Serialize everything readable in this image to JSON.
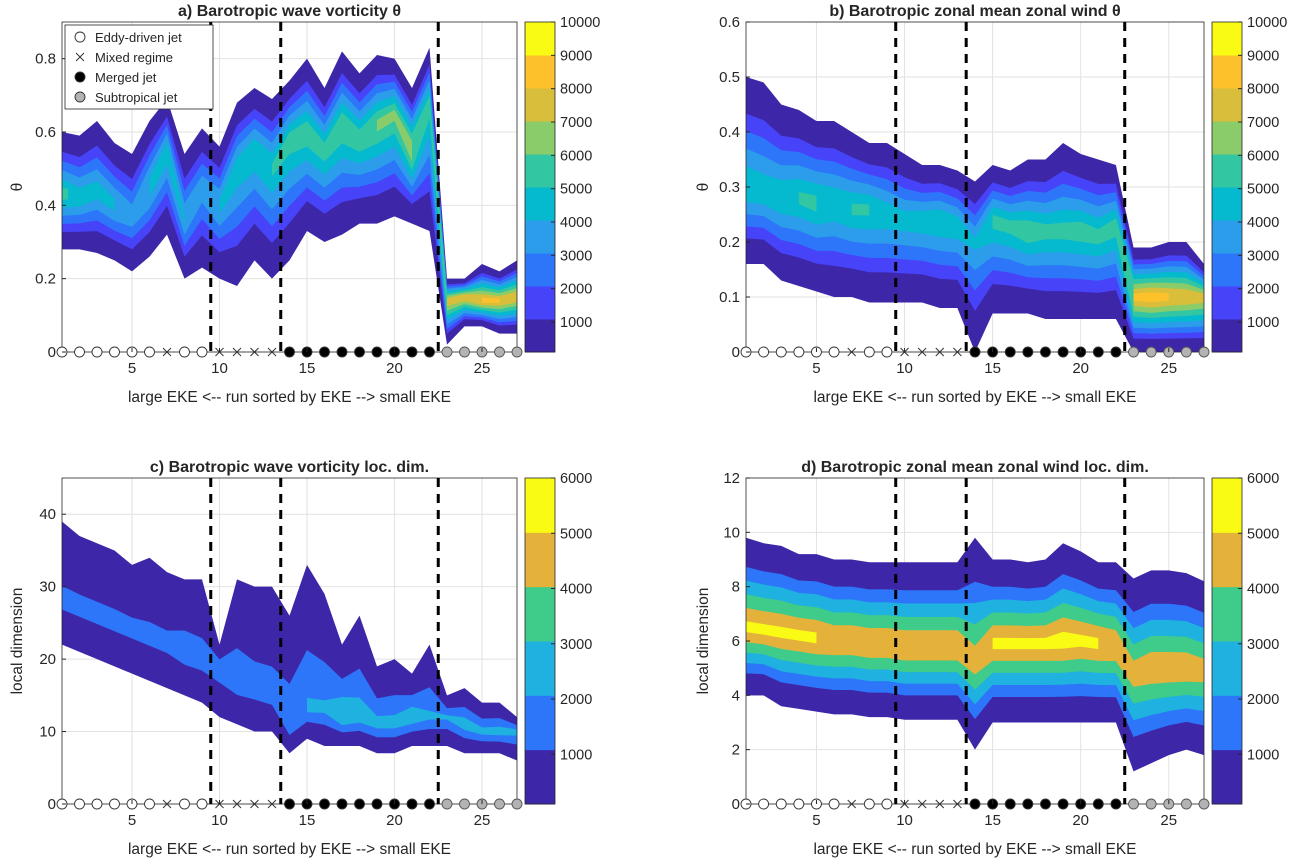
{
  "chart_data": [
    {
      "id": "a",
      "type": "contour",
      "title": "a) Barotropic wave vorticity θ",
      "xlabel": "large EKE <-- run sorted by EKE --> small EKE",
      "ylabel": "θ",
      "xlim": [
        1,
        27
      ],
      "ylim": [
        0,
        0.9
      ],
      "xticks": [
        5,
        10,
        15,
        20,
        25
      ],
      "yticks": [
        0,
        0.2,
        0.4,
        0.6,
        0.8
      ],
      "ytick_labels": [
        "0",
        "0.2",
        "0.4",
        "0.6",
        "0.8"
      ],
      "grid": true,
      "colorbar": {
        "levels": [
          1000,
          2000,
          3000,
          4000,
          5000,
          6000,
          7000,
          8000,
          9000,
          10000
        ],
        "ticks": [
          "1000",
          "2000",
          "3000",
          "4000",
          "5000",
          "6000",
          "7000",
          "8000",
          "9000",
          "10000"
        ]
      },
      "regime_boundaries": [
        9.5,
        13.5,
        22.5
      ],
      "legend": {
        "position": "top-left",
        "entries": [
          {
            "label": "Eddy-driven jet",
            "marker": "open-circle"
          },
          {
            "label": "Mixed regime",
            "marker": "x"
          },
          {
            "label": "Merged jet",
            "marker": "filled-circle"
          },
          {
            "label": "Subtropical jet",
            "marker": "gray-circle"
          }
        ]
      },
      "regime_markers": {
        "open-circle": [
          1,
          2,
          3,
          4,
          5,
          6,
          8,
          9
        ],
        "x": [
          7,
          10,
          11,
          12,
          13
        ],
        "filled-circle": [
          14,
          15,
          16,
          17,
          18,
          19,
          20,
          21,
          22
        ],
        "gray-circle": [
          23,
          24,
          25,
          26,
          27
        ]
      },
      "runs": [
        1,
        2,
        3,
        4,
        5,
        6,
        7,
        8,
        9,
        10,
        11,
        12,
        13,
        14,
        15,
        16,
        17,
        18,
        19,
        20,
        21,
        22,
        23,
        24,
        25,
        26,
        27
      ],
      "center": [
        0.43,
        0.42,
        0.44,
        0.4,
        0.37,
        0.45,
        0.55,
        0.36,
        0.45,
        0.4,
        0.5,
        0.55,
        0.5,
        0.58,
        0.6,
        0.55,
        0.62,
        0.58,
        0.62,
        0.65,
        0.55,
        0.68,
        0.14,
        0.15,
        0.14,
        0.14,
        0.15
      ],
      "lower": [
        0.28,
        0.28,
        0.27,
        0.25,
        0.22,
        0.26,
        0.32,
        0.2,
        0.23,
        0.2,
        0.18,
        0.25,
        0.2,
        0.25,
        0.33,
        0.3,
        0.32,
        0.35,
        0.35,
        0.37,
        0.35,
        0.33,
        0.02,
        0.07,
        0.07,
        0.05,
        0.05
      ],
      "upper": [
        0.6,
        0.59,
        0.63,
        0.57,
        0.54,
        0.63,
        0.69,
        0.54,
        0.61,
        0.56,
        0.68,
        0.72,
        0.69,
        0.74,
        0.8,
        0.72,
        0.82,
        0.76,
        0.81,
        0.8,
        0.72,
        0.83,
        0.2,
        0.2,
        0.24,
        0.22,
        0.25
      ],
      "peak": [
        5800,
        5200,
        5000,
        4800,
        4200,
        5000,
        5200,
        4600,
        4200,
        4800,
        5200,
        5400,
        5600,
        6000,
        6200,
        6000,
        6400,
        6200,
        6600,
        6600,
        7400,
        6000,
        8200,
        8400,
        8800,
        8600,
        8400
      ]
    },
    {
      "id": "b",
      "type": "contour",
      "title": "b) Barotropic zonal mean zonal wind θ",
      "xlabel": "large EKE <-- run sorted by EKE --> small EKE",
      "ylabel": "θ",
      "xlim": [
        1,
        27
      ],
      "ylim": [
        0,
        0.6
      ],
      "xticks": [
        5,
        10,
        15,
        20,
        25
      ],
      "yticks": [
        0,
        0.1,
        0.2,
        0.3,
        0.4,
        0.5,
        0.6
      ],
      "ytick_labels": [
        "0",
        "0.1",
        "0.2",
        "0.3",
        "0.4",
        "0.5",
        "0.6"
      ],
      "grid": true,
      "colorbar": {
        "levels": [
          1000,
          2000,
          3000,
          4000,
          5000,
          6000,
          7000,
          8000,
          9000,
          10000
        ],
        "ticks": [
          "1000",
          "2000",
          "3000",
          "4000",
          "5000",
          "6000",
          "7000",
          "8000",
          "9000",
          "10000"
        ]
      },
      "regime_boundaries": [
        9.5,
        13.5,
        22.5
      ],
      "regime_markers": {
        "open-circle": [
          1,
          2,
          3,
          4,
          5,
          6,
          8,
          9
        ],
        "x": [
          7,
          10,
          11,
          12,
          13
        ],
        "filled-circle": [
          14,
          15,
          16,
          17,
          18,
          19,
          20,
          21,
          22
        ],
        "gray-circle": [
          23,
          24,
          25,
          26,
          27
        ]
      },
      "runs": [
        1,
        2,
        3,
        4,
        5,
        6,
        7,
        8,
        9,
        10,
        11,
        12,
        13,
        14,
        15,
        16,
        17,
        18,
        19,
        20,
        21,
        22,
        23,
        24,
        25,
        26,
        27
      ],
      "center": [
        0.3,
        0.29,
        0.28,
        0.28,
        0.27,
        0.27,
        0.26,
        0.26,
        0.25,
        0.24,
        0.24,
        0.24,
        0.23,
        0.2,
        0.24,
        0.23,
        0.22,
        0.22,
        0.22,
        0.22,
        0.21,
        0.23,
        0.1,
        0.1,
        0.1,
        0.1,
        0.1
      ],
      "lower": [
        0.16,
        0.16,
        0.13,
        0.12,
        0.11,
        0.1,
        0.1,
        0.09,
        0.09,
        0.09,
        0.09,
        0.08,
        0.08,
        0.0,
        0.07,
        0.07,
        0.07,
        0.06,
        0.06,
        0.06,
        0.06,
        0.06,
        0.0,
        0.0,
        0.0,
        0.0,
        0.0
      ],
      "upper": [
        0.5,
        0.49,
        0.45,
        0.44,
        0.42,
        0.42,
        0.4,
        0.38,
        0.38,
        0.36,
        0.34,
        0.34,
        0.33,
        0.31,
        0.34,
        0.33,
        0.35,
        0.35,
        0.38,
        0.36,
        0.35,
        0.34,
        0.19,
        0.19,
        0.2,
        0.2,
        0.16
      ],
      "peak": [
        5400,
        5200,
        5400,
        5600,
        5800,
        5400,
        5600,
        5600,
        5200,
        5000,
        5200,
        5400,
        5200,
        4600,
        5800,
        5800,
        6200,
        5800,
        5800,
        6000,
        5800,
        6000,
        8600,
        9000,
        8600,
        8400,
        8000
      ]
    },
    {
      "id": "c",
      "type": "contour",
      "title": "c) Barotropic wave vorticity loc. dim.",
      "xlabel": "large EKE <-- run sorted by EKE --> small EKE",
      "ylabel": "local dimension",
      "xlim": [
        1,
        27
      ],
      "ylim": [
        0,
        45
      ],
      "xticks": [
        5,
        10,
        15,
        20,
        25
      ],
      "yticks": [
        0,
        10,
        20,
        30,
        40
      ],
      "ytick_labels": [
        "0",
        "10",
        "20",
        "30",
        "40"
      ],
      "grid": true,
      "colorbar": {
        "levels": [
          1000,
          2000,
          3000,
          4000,
          5000,
          6000
        ],
        "ticks": [
          "1000",
          "2000",
          "3000",
          "4000",
          "5000",
          "6000"
        ]
      },
      "regime_boundaries": [
        9.5,
        13.5,
        22.5
      ],
      "regime_markers": {
        "open-circle": [
          1,
          2,
          3,
          4,
          5,
          6,
          8,
          9
        ],
        "x": [
          7,
          10,
          11,
          12,
          13
        ],
        "filled-circle": [
          14,
          15,
          16,
          17,
          18,
          19,
          20,
          21,
          22
        ],
        "gray-circle": [
          23,
          24,
          25,
          26,
          27
        ]
      },
      "runs": [
        1,
        2,
        3,
        4,
        5,
        6,
        7,
        8,
        9,
        10,
        11,
        12,
        13,
        14,
        15,
        16,
        17,
        18,
        19,
        20,
        21,
        22,
        23,
        24,
        25,
        26,
        27
      ],
      "center": [
        28,
        27,
        26,
        25,
        24,
        23,
        22,
        21,
        20,
        19,
        17,
        16,
        15,
        11,
        13,
        13,
        12,
        12,
        11,
        11,
        12,
        12,
        12,
        11,
        10,
        10,
        10
      ],
      "lower": [
        22,
        21,
        20,
        19,
        18,
        17,
        16,
        15,
        14,
        12,
        11,
        10,
        10,
        7,
        9,
        8,
        8,
        8,
        7,
        7,
        8,
        8,
        8,
        7,
        7,
        7,
        6
      ],
      "upper": [
        39,
        37,
        36,
        35,
        33,
        34,
        32,
        31,
        31,
        22,
        31,
        30,
        30,
        26,
        33,
        29,
        22,
        26,
        19,
        20,
        18,
        22,
        15,
        16,
        14,
        14,
        12
      ],
      "peak": [
        1800,
        1800,
        1800,
        1800,
        1800,
        1800,
        1800,
        2100,
        2000,
        2200,
        2200,
        2000,
        2000,
        2400,
        2600,
        2600,
        3400,
        3000,
        2800,
        2800,
        3200,
        2600,
        2600,
        3000,
        2800,
        2900,
        2800
      ]
    },
    {
      "id": "d",
      "type": "contour",
      "title": "d) Barotropic zonal mean zonal wind loc. dim.",
      "xlabel": "large EKE <-- run sorted by EKE --> small EKE",
      "ylabel": "local dimension",
      "xlim": [
        1,
        27
      ],
      "ylim": [
        0,
        12
      ],
      "xticks": [
        5,
        10,
        15,
        20,
        25
      ],
      "yticks": [
        0,
        2,
        4,
        6,
        8,
        10,
        12
      ],
      "ytick_labels": [
        "0",
        "2",
        "4",
        "6",
        "8",
        "10",
        "12"
      ],
      "grid": true,
      "colorbar": {
        "levels": [
          1000,
          2000,
          3000,
          4000,
          5000,
          6000
        ],
        "ticks": [
          "1000",
          "2000",
          "3000",
          "4000",
          "5000",
          "6000"
        ]
      },
      "regime_boundaries": [
        9.5,
        13.5,
        22.5
      ],
      "regime_markers": {
        "open-circle": [
          1,
          2,
          3,
          4,
          5,
          6,
          8,
          9
        ],
        "x": [
          7,
          10,
          11,
          12,
          13
        ],
        "filled-circle": [
          14,
          15,
          16,
          17,
          18,
          19,
          20,
          21,
          22
        ],
        "gray-circle": [
          23,
          24,
          25,
          26,
          27
        ]
      },
      "runs": [
        1,
        2,
        3,
        4,
        5,
        6,
        7,
        8,
        9,
        10,
        11,
        12,
        13,
        14,
        15,
        16,
        17,
        18,
        19,
        20,
        21,
        22,
        23,
        24,
        25,
        26,
        27
      ],
      "center": [
        6.5,
        6.4,
        6.3,
        6.2,
        6.1,
        6.0,
        6.0,
        5.9,
        5.9,
        5.8,
        5.8,
        5.8,
        5.8,
        5.2,
        5.9,
        5.9,
        5.9,
        5.9,
        6.0,
        6.0,
        5.9,
        5.8,
        4.8,
        5.0,
        5.0,
        5.0,
        4.9
      ],
      "lower": [
        4.0,
        4.0,
        3.6,
        3.5,
        3.4,
        3.3,
        3.3,
        3.2,
        3.2,
        3.1,
        3.1,
        3.1,
        3.1,
        2.0,
        3.0,
        3.0,
        3.0,
        3.0,
        3.0,
        3.0,
        3.0,
        3.0,
        1.2,
        1.5,
        1.8,
        2.0,
        1.8
      ],
      "upper": [
        9.8,
        9.6,
        9.5,
        9.2,
        9.2,
        9.0,
        9.0,
        8.9,
        8.9,
        8.9,
        8.9,
        8.9,
        8.9,
        9.8,
        9.0,
        9.0,
        8.9,
        9.0,
        9.6,
        9.3,
        8.9,
        8.9,
        8.3,
        8.6,
        8.6,
        8.5,
        8.2
      ],
      "peak": [
        5600,
        5600,
        5600,
        5600,
        5600,
        5400,
        5400,
        5400,
        5400,
        5400,
        5400,
        5400,
        5400,
        5000,
        5600,
        5600,
        5600,
        5600,
        5800,
        5600,
        5600,
        5400,
        5000,
        5200,
        5200,
        5200,
        5000
      ]
    }
  ]
}
